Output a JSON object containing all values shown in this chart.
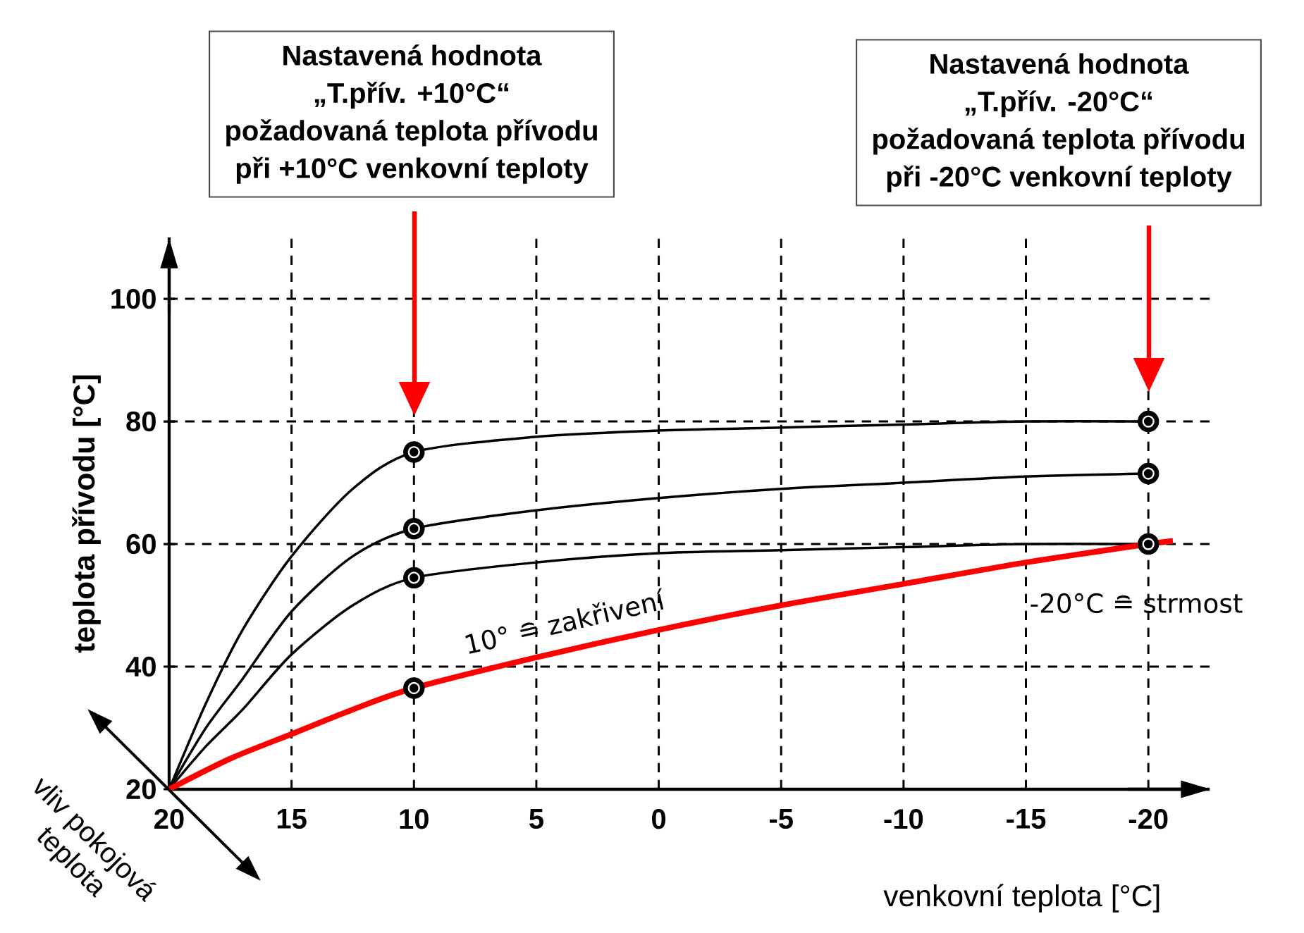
{
  "chart_data": {
    "type": "line",
    "xlabel": "venkovní teplota [°C]",
    "ylabel": "teplota přívodu [°C]",
    "xlim": [
      20,
      -22.5
    ],
    "ylim": [
      20,
      110
    ],
    "xticks": [
      20,
      15,
      10,
      5,
      0,
      -5,
      -10,
      -15,
      -20
    ],
    "yticks": [
      20,
      40,
      60,
      80,
      100
    ],
    "grid": true,
    "series": [
      {
        "color": "#000000",
        "x": [
          20,
          18.5,
          17,
          15,
          12.5,
          10,
          5,
          0,
          -5,
          -10,
          -15,
          -20
        ],
        "values": [
          20,
          34,
          46,
          58,
          69,
          75,
          77.5,
          78.5,
          79,
          79.5,
          80,
          80
        ]
      },
      {
        "color": "#000000",
        "x": [
          20,
          18.5,
          17,
          15,
          12.5,
          10,
          5,
          0,
          -5,
          -10,
          -15,
          -20
        ],
        "values": [
          20,
          30,
          38,
          49,
          58,
          62.5,
          65.5,
          67.5,
          69,
          70,
          71,
          71.5
        ]
      },
      {
        "color": "#000000",
        "x": [
          20,
          18.5,
          17,
          15,
          12.5,
          10,
          5,
          0,
          -5,
          -10,
          -15,
          -20
        ],
        "values": [
          20,
          27,
          33,
          42,
          50,
          54.5,
          57,
          58.5,
          59,
          59.5,
          60,
          60
        ]
      },
      {
        "color": "#ff0000",
        "x": [
          20,
          17.5,
          15,
          12.5,
          10,
          5,
          0,
          -5,
          -10,
          -15,
          -20,
          -21
        ],
        "values": [
          20,
          25,
          29,
          33,
          36.5,
          41.5,
          46,
          50,
          53.5,
          57,
          60,
          60.5
        ]
      },
      {
        "type": "scatter",
        "color": "#000000",
        "marker": "circle",
        "x": [
          10,
          10,
          10,
          10,
          -20,
          -20,
          -20
        ],
        "values": [
          75,
          62.5,
          54.5,
          36.5,
          80,
          71.5,
          60
        ]
      }
    ],
    "annotations": [
      "Nastavená hodnota",
      "„T.přív. +10°C“",
      "požadovaná teplota přívodu",
      "při +10°C venkovní teploty",
      "Nastavená hodnota",
      "„T.přív. -20°C“",
      "požadovaná teplota přívodu",
      "při -20°C venkovní teploty",
      "10° ≘ zakřivení",
      "-20°C ≘ strmost",
      "vliv pokojová",
      "teplota"
    ]
  }
}
